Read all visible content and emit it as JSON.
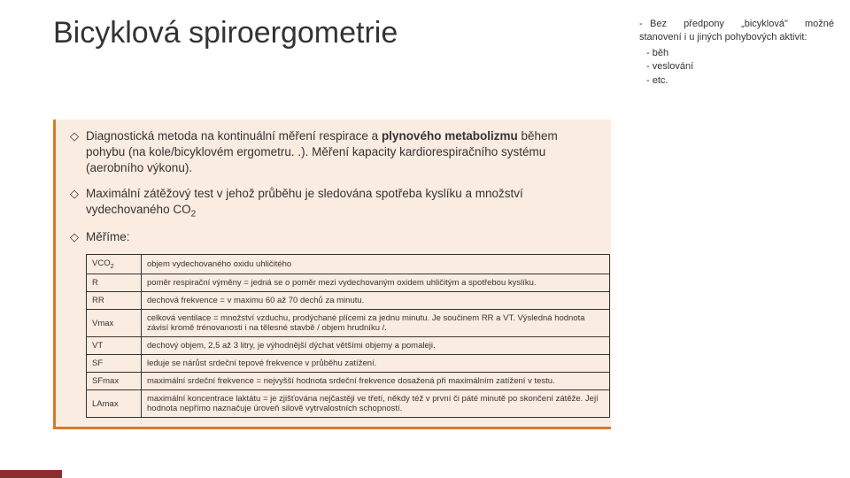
{
  "title": "Bicyklová spiroergometrie",
  "sidenote": {
    "lead": "Bez předpony „bicyklová\" možné stanovení i u jiných pohybových aktivit:",
    "items": [
      "běh",
      "veslování",
      "etc."
    ]
  },
  "bullets": [
    "Diagnostická metoda na kontinuální měření respirace a <b>plynového metabolizmu</b> během pohybu (na kole/bicyklovém ergometru. .). Měření kapacity kardiorespiračního systému (aerobního výkonu).",
    "Maximální zátěžový test v jehož průběhu je sledována spotřeba kyslíku a množství vydechovaného CO<sub>2</sub>",
    "Měříme:"
  ],
  "table": [
    {
      "k": "VCO<sub>2</sub>",
      "v": "objem vydechovaného oxidu uhličitého"
    },
    {
      "k": "R",
      "v": "poměr respirační výměny = jedná se o poměr mezi vydechovaným oxidem uhličitým a spotřebou kyslíku."
    },
    {
      "k": "RR",
      "v": "dechová frekvence = v maximu 60 až 70 dechů za minutu."
    },
    {
      "k": "Vmax",
      "v": "celková ventilace = množství vzduchu, prodýchané plícemi za jednu  minutu. Je součinem RR a VT. Výsledná hodnota závisí kromě trénovanosti i na tělesné stavbě / objem hrudníku /."
    },
    {
      "k": "VT",
      "v": "dechový objem, 2,5 až 3 litry, je výhodnější dýchat většími objemy a pomaleji."
    },
    {
      "k": "SF",
      "v": "leduje se nárůst srdeční tepové frekvence v průběhu zatížení."
    },
    {
      "k": "SFmax",
      "v": "maximální srdeční frekvence = nejvyšší hodnota srdeční frekvence dosažená při maximálním zatížení v testu."
    },
    {
      "k": "LAmax",
      "v": "maximální koncentrace laktátu =  je zjišťována nejčastěji ve třetí, někdy též v první či páté minutě po skončení zátěže. Její hodnota nepřímo naznačuje úroveň silově vytrvalostních schopností."
    }
  ]
}
